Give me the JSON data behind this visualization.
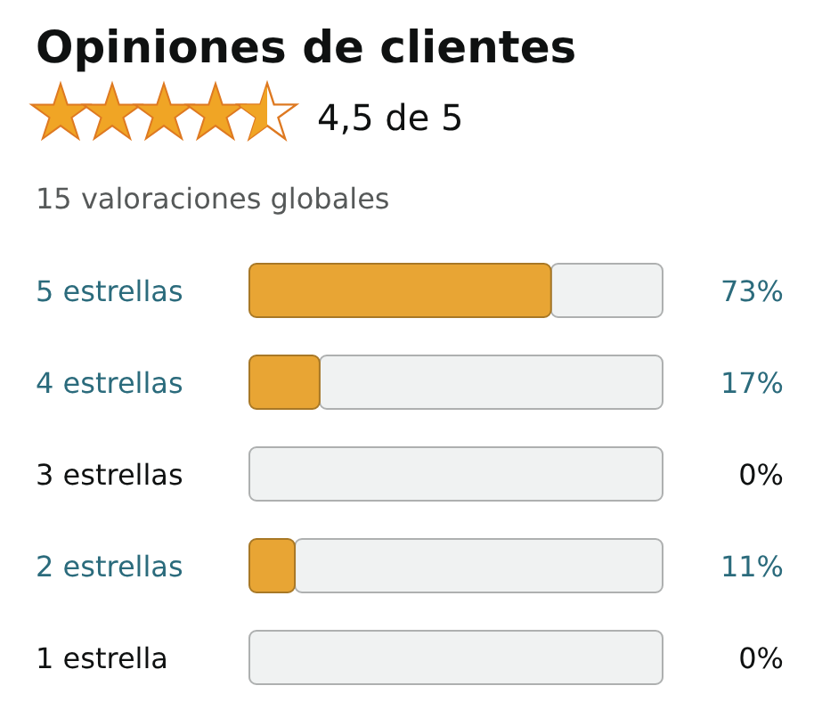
{
  "chart_data": {
    "type": "bar",
    "orientation": "horizontal",
    "stacked": true,
    "title": "Opiniones de clientes",
    "subtitle": "4,5 de 5",
    "annotations": [
      "15 valoraciones globales"
    ],
    "categories": [
      "5 estrellas",
      "4 estrellas",
      "3 estrellas",
      "2 estrellas",
      "1 estrella"
    ],
    "series": [
      {
        "color": "#e8a534",
        "values": [
          73,
          17,
          0,
          11,
          0
        ],
        "value_labels": [
          "73%",
          "17%",
          "0%",
          "11%",
          "0%"
        ]
      },
      {
        "color": "#f0f2f2",
        "values": [
          27,
          83,
          100,
          89,
          100
        ]
      }
    ],
    "xlim": [
      0,
      100
    ],
    "tick_labels": "y"
  }
}
